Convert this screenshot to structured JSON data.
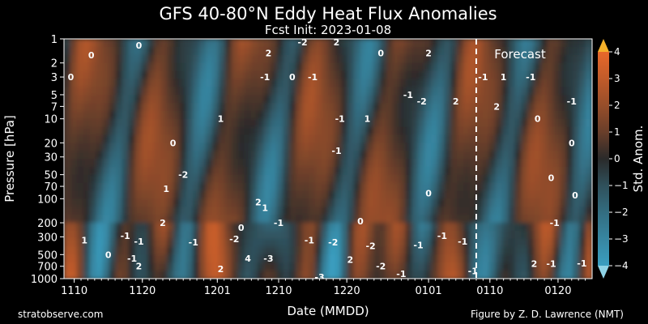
{
  "chart_data": {
    "type": "heatmap",
    "title": "GFS 40-80°N Eddy Heat Flux Anomalies",
    "subtitle": "Fcst Init: 2023-01-08",
    "xlabel": "Date (MMDD)",
    "ylabel": "Pressure [hPa]",
    "x_ticks": [
      "1110",
      "1120",
      "1201",
      "1210",
      "1220",
      "0101",
      "0110",
      "0120"
    ],
    "x_tick_days": [
      0,
      10,
      21,
      30,
      40,
      52,
      61,
      71
    ],
    "x_range_days": [
      -1.5,
      76
    ],
    "y_scale": "log",
    "y_range": [
      1000,
      1
    ],
    "y_ticks": [
      1,
      2,
      3,
      5,
      7,
      10,
      20,
      30,
      50,
      70,
      100,
      200,
      300,
      500,
      700,
      1000
    ],
    "forecast_init_day": 59,
    "forecast_label": "Forecast",
    "colorbar": {
      "label": "Std. Anom.",
      "range": [
        -4,
        4
      ],
      "ticks": [
        -4,
        -3,
        -2,
        -1,
        0,
        1,
        2,
        3,
        4
      ],
      "tick_labels": [
        "−4",
        "−3",
        "−2",
        "−1",
        "0",
        "1",
        "2",
        "3",
        "4"
      ],
      "extend": "both"
    },
    "colors": {
      "neg_strong": "#3a9ec0",
      "neutral": "#2a2a2a",
      "pos_strong": "#e8682a",
      "extreme_pos": "#f5b12a",
      "extreme_neg": "#8fd3e6"
    },
    "contour_labels": [
      {
        "text": "0",
        "day": 2.5,
        "p": 1.6
      },
      {
        "text": "0",
        "day": 9.5,
        "p": 1.2
      },
      {
        "text": "0",
        "day": -0.5,
        "p": 3
      },
      {
        "text": "-1",
        "day": 28,
        "p": 3
      },
      {
        "text": "2",
        "day": 28.5,
        "p": 1.5
      },
      {
        "text": "-2",
        "day": 33.5,
        "p": 1.1
      },
      {
        "text": "0",
        "day": 32,
        "p": 3
      },
      {
        "text": "-1",
        "day": 35,
        "p": 3
      },
      {
        "text": "2",
        "day": 38.5,
        "p": 1.1
      },
      {
        "text": "0",
        "day": 45,
        "p": 1.5
      },
      {
        "text": "2",
        "day": 52,
        "p": 1.5
      },
      {
        "text": "-1",
        "day": 60,
        "p": 3
      },
      {
        "text": "1",
        "day": 63,
        "p": 3
      },
      {
        "text": "-1",
        "day": 67,
        "p": 3
      },
      {
        "text": "2",
        "day": 56,
        "p": 6
      },
      {
        "text": "2",
        "day": 62,
        "p": 7
      },
      {
        "text": "-1",
        "day": 73,
        "p": 6
      },
      {
        "text": "-1",
        "day": 49,
        "p": 5
      },
      {
        "text": "-2",
        "day": 51,
        "p": 6
      },
      {
        "text": "1",
        "day": 21.5,
        "p": 10
      },
      {
        "text": "-1",
        "day": 39,
        "p": 10
      },
      {
        "text": "1",
        "day": 43,
        "p": 10
      },
      {
        "text": "0",
        "day": 68,
        "p": 10
      },
      {
        "text": "0",
        "day": 14.5,
        "p": 20
      },
      {
        "text": "-1",
        "day": 38.5,
        "p": 25
      },
      {
        "text": "0",
        "day": 73,
        "p": 20
      },
      {
        "text": "0",
        "day": 70,
        "p": 55
      },
      {
        "text": "0",
        "day": 73.5,
        "p": 90
      },
      {
        "text": "-2",
        "day": 16,
        "p": 50
      },
      {
        "text": "1",
        "day": 13.5,
        "p": 75
      },
      {
        "text": "0",
        "day": 52,
        "p": 85
      },
      {
        "text": "2",
        "day": 27,
        "p": 110
      },
      {
        "text": "1",
        "day": 28,
        "p": 130
      },
      {
        "text": "-1",
        "day": 30,
        "p": 200
      },
      {
        "text": "0",
        "day": 42,
        "p": 190
      },
      {
        "text": "2",
        "day": 13,
        "p": 200
      },
      {
        "text": "0",
        "day": 24.5,
        "p": 230
      },
      {
        "text": "-1",
        "day": 70.5,
        "p": 200
      },
      {
        "text": "-1",
        "day": 54,
        "p": 290
      },
      {
        "text": "1",
        "day": 1.5,
        "p": 330
      },
      {
        "text": "-1",
        "day": 7.5,
        "p": 290
      },
      {
        "text": "-1",
        "day": 9.5,
        "p": 340
      },
      {
        "text": "-1",
        "day": 17.5,
        "p": 350
      },
      {
        "text": "-2",
        "day": 23.5,
        "p": 320
      },
      {
        "text": "-1",
        "day": 34.5,
        "p": 330
      },
      {
        "text": "-2",
        "day": 38,
        "p": 350
      },
      {
        "text": "-2",
        "day": 43.5,
        "p": 390
      },
      {
        "text": "-1",
        "day": 50.5,
        "p": 380
      },
      {
        "text": "-1",
        "day": 57,
        "p": 340
      },
      {
        "text": "0",
        "day": 5,
        "p": 500
      },
      {
        "text": "-1",
        "day": 8.5,
        "p": 560
      },
      {
        "text": "2",
        "day": 9.5,
        "p": 700
      },
      {
        "text": "4",
        "day": 25.5,
        "p": 560
      },
      {
        "text": "-3",
        "day": 28.5,
        "p": 560
      },
      {
        "text": "2",
        "day": 21.5,
        "p": 760
      },
      {
        "text": "-3",
        "day": 36,
        "p": 950
      },
      {
        "text": "2",
        "day": 40.5,
        "p": 580
      },
      {
        "text": "-2",
        "day": 45,
        "p": 700
      },
      {
        "text": "-1",
        "day": 48,
        "p": 870
      },
      {
        "text": "-1",
        "day": 58.5,
        "p": 800
      },
      {
        "text": "2",
        "day": 67.5,
        "p": 650
      },
      {
        "text": "-1",
        "day": 70,
        "p": 650
      },
      {
        "text": "-1",
        "day": 74.5,
        "p": 640
      }
    ]
  },
  "footer": {
    "left": "stratobserve.com",
    "right": "Figure by Z. D. Lawrence (NMT)"
  }
}
